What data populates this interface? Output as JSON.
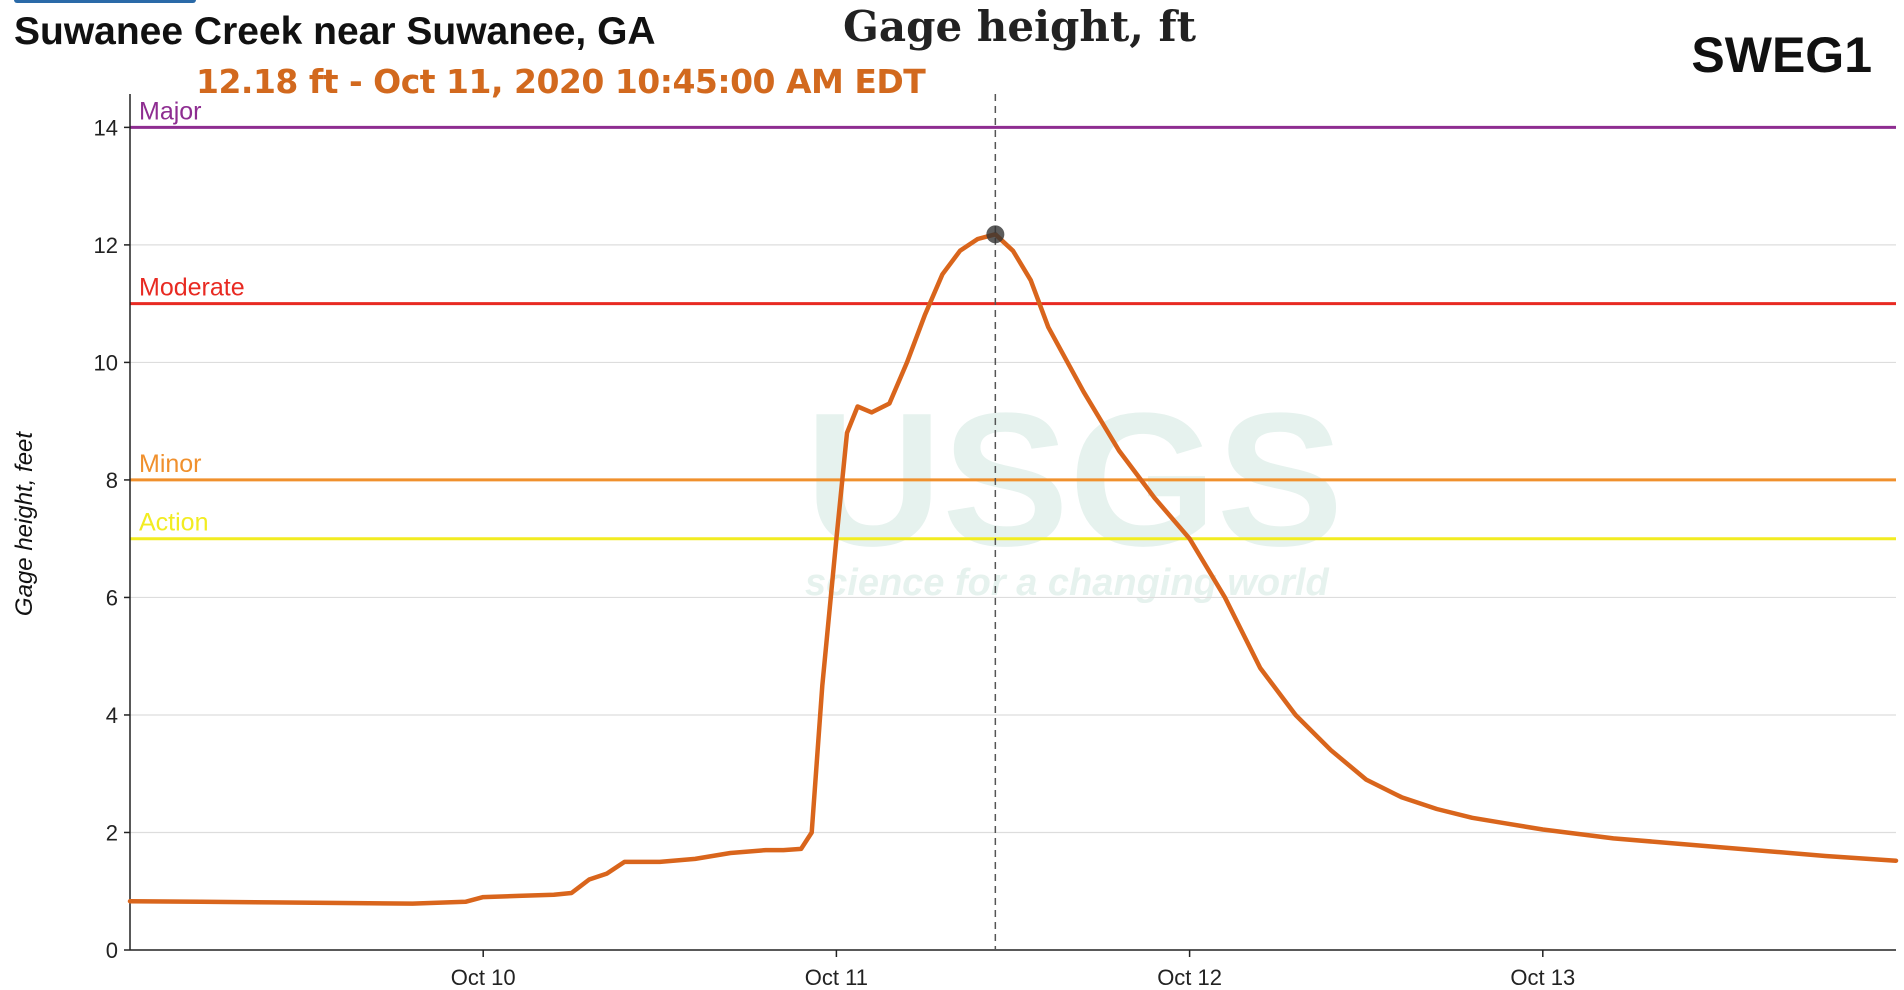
{
  "header": {
    "station_name": "Suwanee Creek near Suwanee, GA",
    "chart_title": "Gage height, ft",
    "station_id": "SWEG1",
    "readout": "12.18 ft - Oct 11, 2020 10:45:00 AM EDT"
  },
  "watermark": {
    "logo_text": "USGS",
    "tagline": "science for a changing world"
  },
  "colors": {
    "series": "#d9651c",
    "major": "#8e2d91",
    "moderate": "#e82a22",
    "minor": "#f0902d",
    "action": "#f2ec21",
    "readout": "#d2691e",
    "grid": "#dddddd"
  },
  "chart_data": {
    "type": "line",
    "title": "Gage height, ft",
    "xlabel": "",
    "ylabel": "Gage height, feet",
    "x_domain_days": [
      0,
      5
    ],
    "ylim": [
      0,
      14.5
    ],
    "y_ticks": [
      0,
      2,
      4,
      6,
      8,
      10,
      12,
      14
    ],
    "y_tick_labels": [
      "0",
      "2",
      "4",
      "6",
      "8",
      "10",
      "12",
      "14"
    ],
    "x_ticks": [
      {
        "day": 1,
        "label": "Oct 10"
      },
      {
        "day": 2,
        "label": "Oct 11"
      },
      {
        "day": 3,
        "label": "Oct 12"
      },
      {
        "day": 4,
        "label": "Oct 13"
      }
    ],
    "grid": true,
    "flood_stages": [
      {
        "name": "Major",
        "value": 14,
        "color": "#8e2d91"
      },
      {
        "name": "Moderate",
        "value": 11,
        "color": "#e82a22"
      },
      {
        "name": "Minor",
        "value": 8,
        "color": "#f0902d"
      },
      {
        "name": "Action",
        "value": 7,
        "color": "#f2ec21"
      }
    ],
    "highlight": {
      "day": 2.45,
      "value": 12.18
    },
    "series": [
      {
        "points": [
          [
            0.0,
            0.83
          ],
          [
            0.2,
            0.82
          ],
          [
            0.4,
            0.81
          ],
          [
            0.6,
            0.8
          ],
          [
            0.8,
            0.79
          ],
          [
            0.95,
            0.82
          ],
          [
            1.0,
            0.9
          ],
          [
            1.1,
            0.92
          ],
          [
            1.2,
            0.94
          ],
          [
            1.25,
            0.97
          ],
          [
            1.3,
            1.2
          ],
          [
            1.35,
            1.3
          ],
          [
            1.4,
            1.5
          ],
          [
            1.5,
            1.5
          ],
          [
            1.6,
            1.55
          ],
          [
            1.7,
            1.65
          ],
          [
            1.8,
            1.7
          ],
          [
            1.85,
            1.7
          ],
          [
            1.9,
            1.72
          ],
          [
            1.93,
            2.0
          ],
          [
            1.96,
            4.5
          ],
          [
            2.0,
            7.0
          ],
          [
            2.03,
            8.8
          ],
          [
            2.06,
            9.25
          ],
          [
            2.1,
            9.15
          ],
          [
            2.15,
            9.3
          ],
          [
            2.2,
            10.0
          ],
          [
            2.25,
            10.8
          ],
          [
            2.3,
            11.5
          ],
          [
            2.35,
            11.9
          ],
          [
            2.4,
            12.1
          ],
          [
            2.45,
            12.18
          ],
          [
            2.5,
            11.9
          ],
          [
            2.55,
            11.4
          ],
          [
            2.6,
            10.6
          ],
          [
            2.7,
            9.5
          ],
          [
            2.8,
            8.5
          ],
          [
            2.9,
            7.7
          ],
          [
            3.0,
            7.0
          ],
          [
            3.1,
            6.0
          ],
          [
            3.2,
            4.8
          ],
          [
            3.3,
            4.0
          ],
          [
            3.4,
            3.4
          ],
          [
            3.5,
            2.9
          ],
          [
            3.6,
            2.6
          ],
          [
            3.7,
            2.4
          ],
          [
            3.8,
            2.25
          ],
          [
            3.9,
            2.15
          ],
          [
            4.0,
            2.05
          ],
          [
            4.2,
            1.9
          ],
          [
            4.4,
            1.8
          ],
          [
            4.6,
            1.7
          ],
          [
            4.8,
            1.6
          ],
          [
            5.0,
            1.52
          ]
        ]
      }
    ]
  }
}
